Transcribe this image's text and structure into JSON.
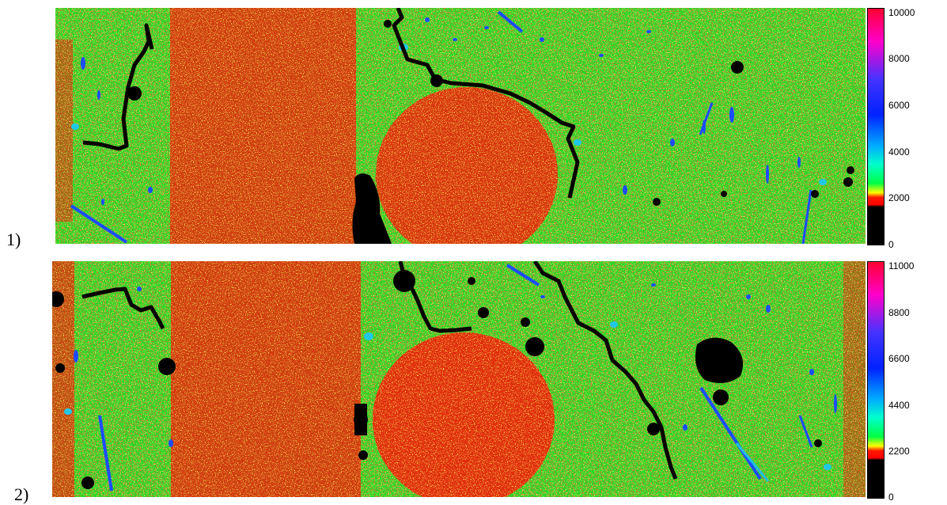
{
  "panels": [
    {
      "label": "1)",
      "colorbar_ticks": [
        "10000",
        "8000",
        "6000",
        "4000",
        "2000",
        "0"
      ],
      "colorbar_range": [
        0,
        10000
      ]
    },
    {
      "label": "2)",
      "colorbar_ticks": [
        "11000",
        "8800",
        "6600",
        "4400",
        "2200",
        "0"
      ],
      "colorbar_range": [
        0,
        11000
      ]
    }
  ],
  "colors": {
    "background_green": "#22dd22",
    "dense_red": "#e8200c",
    "speckle_yellow": "#e8e820",
    "pore_blue": "#1040ff",
    "pore_cyan": "#20c0e0",
    "crack_black": "#000000"
  },
  "colormap": [
    "#000000",
    "#000000",
    "#ff0000",
    "#ffff00",
    "#00ff00",
    "#00ffff",
    "#0000ff",
    "#ff00ff",
    "#ff0000"
  ]
}
